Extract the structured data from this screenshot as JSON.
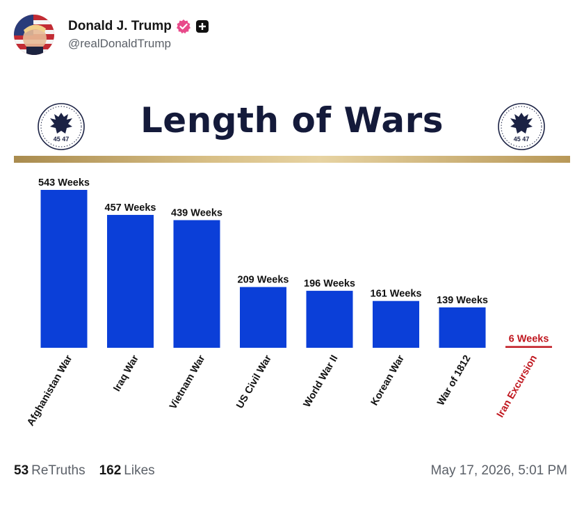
{
  "post": {
    "author": {
      "display_name": "Donald J. Trump",
      "handle": "@realDonaldTrump",
      "verified_color": "#e84a8a"
    },
    "stats": {
      "retruths_count": "53",
      "retruths_label": "ReTruths",
      "likes_count": "162",
      "likes_label": "Likes"
    },
    "timestamp": "May 17, 2026, 5:01 PM"
  },
  "graphic": {
    "seal_text": "45 47",
    "accent_gold": "#c8ad73",
    "navy": "#141a3a"
  },
  "chart_data": {
    "type": "bar",
    "title": "Length of Wars",
    "categories": [
      "Afghanistan War",
      "Iraq War",
      "Vietnam War",
      "US Civil War",
      "World War II",
      "Korean War",
      "War of 1812",
      "Iran Excursion"
    ],
    "values": [
      543,
      457,
      439,
      209,
      196,
      161,
      139,
      6
    ],
    "data_labels": [
      "543 Weeks",
      "457 Weeks",
      "439 Weeks",
      "209 Weeks",
      "196 Weeks",
      "161 Weeks",
      "139 Weeks",
      "6 Weeks"
    ],
    "bar_color": "#0b3fd8",
    "highlight_color": "#c0171f",
    "highlight_category": "Iran Excursion",
    "ylim": [
      0,
      543
    ],
    "grid": false,
    "legend": "none"
  }
}
